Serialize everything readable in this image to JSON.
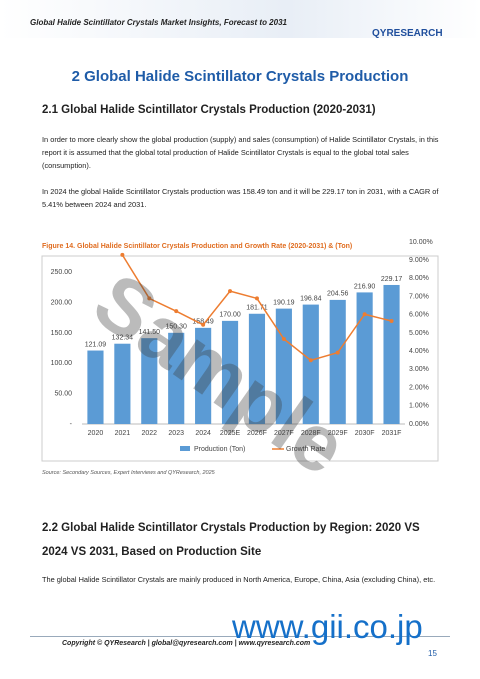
{
  "header": {
    "title": "Global Halide Scintillator Crystals Market Insights, Forecast to 2031",
    "logo": "QYRESEARCH"
  },
  "section": {
    "title": "2  Global Halide Scintillator Crystals Production"
  },
  "subsection_1": {
    "title": "2.1  Global Halide Scintillator Crystals Production (2020-2031)",
    "paragraphs": [
      "In order to more clearly show the global production (supply) and sales (consumption) of Halide Scintillator Crystals, in this report it is assumed that the global total production of Halide Scintillator Crystals is equal to the global total sales (consumption).",
      "In 2024 the global Halide Scintillator Crystals production was 158.49 ton and it will be 229.17 ton in 2031, with a CAGR of 5.41% between 2024 and 2031."
    ]
  },
  "chart_data": {
    "type": "bar",
    "title": "Figure 14.  Global Halide Scintillator Crystals Production and Growth Rate (2020-2031) & (Ton)",
    "categories": [
      "2020",
      "2021",
      "2022",
      "2023",
      "2024",
      "2025E",
      "2026F",
      "2027F",
      "2028F",
      "2029F",
      "2030F",
      "2031F"
    ],
    "series": [
      {
        "name": "Production (Ton)",
        "type": "bar",
        "color": "#5b9bd5",
        "values": [
          121.09,
          132.34,
          141.5,
          150.3,
          158.49,
          170.0,
          181.71,
          190.19,
          196.84,
          204.56,
          216.9,
          229.17
        ],
        "value_labels": [
          "121.09",
          "132.34",
          "141.50",
          "150.30",
          "158.49",
          "170.00",
          "181.71",
          "190.19",
          "196.84",
          "204.56",
          "216.90",
          "229.17"
        ]
      },
      {
        "name": "Growth Rate",
        "type": "line",
        "axis": "y2",
        "color": "#ed7d31",
        "values": [
          null,
          9.29,
          6.9,
          6.2,
          5.45,
          7.3,
          6.9,
          4.67,
          3.5,
          3.92,
          6.03,
          5.66
        ]
      }
    ],
    "ylim": [
      0,
      300
    ],
    "yticks": [
      {
        "value": 0,
        "label": "-"
      },
      {
        "value": 50,
        "label": "50.00"
      },
      {
        "value": 100,
        "label": "100.00"
      },
      {
        "value": 150,
        "label": "150.00"
      },
      {
        "value": 200,
        "label": "200.00"
      },
      {
        "value": 250,
        "label": "250.00"
      }
    ],
    "y2lim": [
      0,
      10
    ],
    "y2ticks": [
      {
        "value": 0,
        "label": "0.00%"
      },
      {
        "value": 1,
        "label": "1.00%"
      },
      {
        "value": 2,
        "label": "2.00%"
      },
      {
        "value": 3,
        "label": "3.00%"
      },
      {
        "value": 4,
        "label": "4.00%"
      },
      {
        "value": 5,
        "label": "5.00%"
      },
      {
        "value": 6,
        "label": "6.00%"
      },
      {
        "value": 7,
        "label": "7.00%"
      },
      {
        "value": 8,
        "label": "8.00%"
      },
      {
        "value": 9,
        "label": "9.00%"
      },
      {
        "value": 10,
        "label": "10.00%"
      }
    ],
    "source": "Source: Secondary Sources, Expert Interviews and QYResearch, 2025"
  },
  "subsection_2": {
    "title": "2.2  Global Halide Scintillator Crystals Production by Region: 2020 VS 2024 VS 2031, Based on Production Site",
    "paragraphs": [
      "The global Halide Scintillator Crystals are mainly produced in North America, Europe, China, Asia (excluding China), etc."
    ]
  },
  "footer": {
    "copyright": "Copyright © QYResearch | global@qyresearch.com | www.qyresearch.com",
    "page": "15"
  },
  "watermarks": [
    "Sample",
    "www.gii.co.jp"
  ]
}
